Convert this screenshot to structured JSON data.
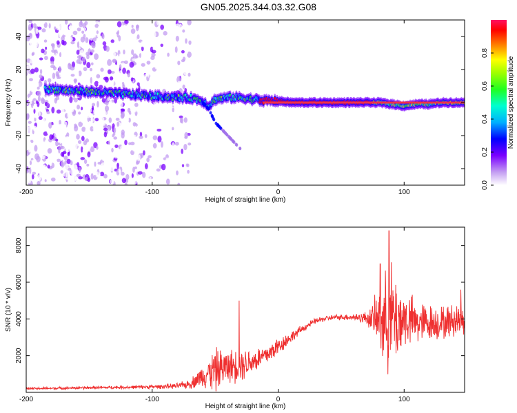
{
  "title": "GN05.2025.344.03.32.G08",
  "colors": {
    "line": "#ef3030",
    "trace": "#f0304a",
    "bg": "#ffffff",
    "axis": "#000000"
  },
  "chart_data": [
    {
      "type": "heatmap",
      "title": "GN05.2025.344.03.32.G08",
      "xlabel": "Height of straight line (km)",
      "ylabel": "Frequency (Hz)",
      "xlim": [
        -200,
        148
      ],
      "ylim": [
        -50,
        50
      ],
      "xticks": [
        -200,
        -100,
        0,
        100
      ],
      "yticks": [
        -40,
        -20,
        0,
        20,
        40
      ],
      "colorbar": {
        "label": "Normalized spectral amplitude",
        "range": [
          0,
          1
        ],
        "ticks": [
          "0.0",
          "0.2",
          "0.4",
          "0.6",
          "0.8"
        ]
      },
      "noise_region_x": [
        -200,
        -80
      ],
      "trace": {
        "description_points_x": [
          -180,
          -160,
          -140,
          -120,
          -100,
          -80,
          -70,
          -60,
          -55,
          -50,
          -40,
          -30,
          -20,
          -10,
          0,
          10,
          30,
          50,
          70,
          80,
          90,
          100,
          110,
          120,
          130,
          148
        ],
        "frequency_hz": [
          8,
          7,
          6,
          5,
          4,
          3,
          3,
          1,
          -2,
          2,
          3,
          3,
          2,
          1,
          1,
          0,
          0,
          0,
          0,
          0,
          -1,
          -2,
          -1,
          -1,
          0,
          0
        ]
      },
      "branch": {
        "x": [
          -60,
          -55,
          -50,
          -45,
          -40,
          -35,
          -30
        ],
        "frequency_hz": [
          0,
          -4,
          -12,
          -16,
          -20,
          -24,
          -28
        ]
      }
    },
    {
      "type": "line",
      "xlabel": "Height of straight line (km)",
      "ylabel": "SNR (10 * v/v)",
      "xlim": [
        -200,
        148
      ],
      "ylim": [
        0,
        9000
      ],
      "xticks": [
        -200,
        -100,
        0,
        100
      ],
      "yticks": [
        2000,
        4000,
        6000,
        8000
      ],
      "envelope": {
        "x": [
          -200,
          -100,
          -80,
          -70,
          -60,
          -50,
          -40,
          -30,
          -20,
          -10,
          0,
          10,
          20,
          30,
          40,
          50,
          60,
          70,
          75,
          80,
          85,
          90,
          95,
          100,
          110,
          120,
          130,
          148
        ],
        "mean": [
          200,
          300,
          350,
          450,
          900,
          1200,
          1400,
          1500,
          1700,
          2000,
          2500,
          3000,
          3500,
          3900,
          4050,
          4100,
          4100,
          4050,
          4000,
          3900,
          3800,
          4000,
          3900,
          4000,
          3800,
          3800,
          3800,
          4000
        ],
        "spread": [
          60,
          100,
          150,
          250,
          600,
          1200,
          900,
          900,
          700,
          600,
          500,
          300,
          200,
          150,
          150,
          150,
          200,
          350,
          800,
          1800,
          2600,
          3000,
          2400,
          1600,
          1200,
          1000,
          900,
          900
        ]
      },
      "peaks": [
        {
          "x": -31,
          "y": 5000
        },
        {
          "x": 88,
          "y": 8800
        },
        {
          "x": 81,
          "y": 7000
        },
        {
          "x": 145,
          "y": 5600
        }
      ]
    }
  ]
}
